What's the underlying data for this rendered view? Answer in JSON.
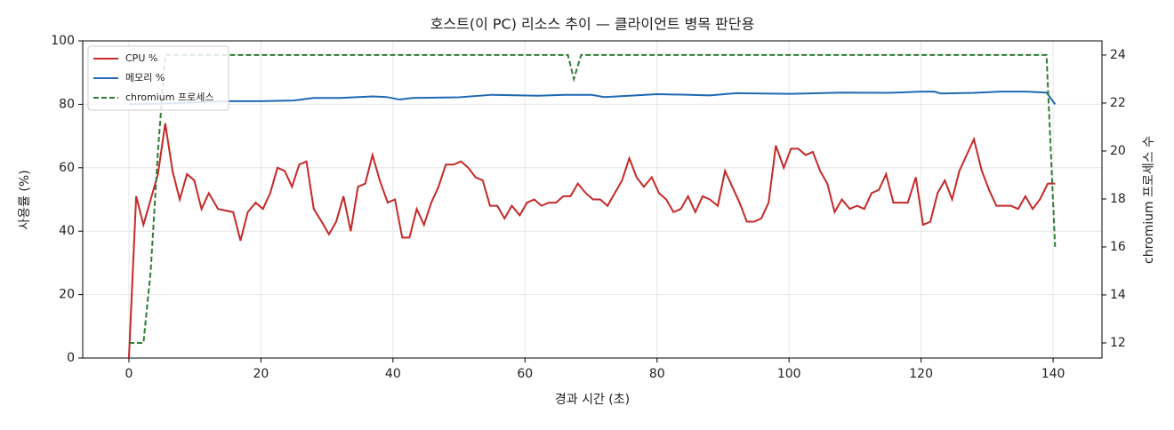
{
  "chart_data": {
    "type": "line",
    "title": "호스트(이 PC) 리소스 추이 — 클라이언트 병목 판단용",
    "xlabel": "경과 시간 (초)",
    "ylabel": "사용률 (%)",
    "y2label": "chromium 프로세스 수",
    "xlim": [
      -7,
      147.4
    ],
    "ylim": [
      0,
      100
    ],
    "y2lim": [
      11.37,
      24.59
    ],
    "xticks": [
      0,
      20,
      40,
      60,
      80,
      100,
      120,
      140
    ],
    "yticks": [
      0,
      20,
      40,
      60,
      80,
      100
    ],
    "y2ticks": [
      12,
      14,
      16,
      18,
      20,
      22,
      24
    ],
    "grid": true,
    "legend": "upper left",
    "series": [
      {
        "name": "CPU %",
        "color": "#c62828",
        "dash": false,
        "x": [
          0,
          1.1,
          2.2,
          3.3,
          4.4,
          5.5,
          6.6,
          7.7,
          8.8,
          9.9,
          11,
          12.1,
          13.5,
          15.8,
          16.9,
          18,
          19.2,
          20.3,
          21.4,
          22.5,
          23.6,
          24.7,
          25.8,
          26.9,
          28,
          29.2,
          30.3,
          31.4,
          32.5,
          33.6,
          34.7,
          35.8,
          36.9,
          38,
          39.2,
          40.3,
          41.4,
          42.5,
          43.6,
          44.7,
          45.8,
          46.9,
          48,
          49.2,
          50.3,
          51.4,
          52.5,
          53.6,
          54.7,
          55.8,
          56.9,
          58,
          59.2,
          60.3,
          61.4,
          62.5,
          63.6,
          64.7,
          65.8,
          66.9,
          68,
          69.2,
          70.3,
          71.4,
          72.5,
          73.6,
          74.7,
          75.8,
          76.9,
          78,
          79.2,
          80.3,
          81.4,
          82.5,
          83.6,
          84.7,
          85.8,
          86.9,
          88,
          89.2,
          90.3,
          91.4,
          92.5,
          93.6,
          94.7,
          95.8,
          96.9,
          98,
          99.2,
          100.3,
          101.4,
          102.5,
          103.6,
          104.7,
          105.8,
          106.9,
          108,
          109.2,
          110.3,
          111.4,
          112.5,
          113.6,
          114.7,
          115.8,
          116.9,
          118,
          119.2,
          120.3,
          121.4,
          122.5,
          123.6,
          124.7,
          125.8,
          126.9,
          128,
          129.2,
          130.3,
          131.4,
          132.5,
          133.6,
          134.7,
          135.8,
          136.9,
          138,
          139.2,
          140.3
        ],
        "values": [
          0,
          51,
          42,
          50,
          58,
          74,
          59,
          50,
          58,
          56,
          47,
          52,
          47,
          46,
          37,
          46,
          49,
          47,
          52,
          60,
          59,
          54,
          61,
          62,
          47,
          43,
          39,
          43,
          51,
          40,
          54,
          55,
          64,
          56,
          49,
          50,
          38,
          38,
          47,
          42,
          49,
          54,
          61,
          61,
          62,
          60,
          57,
          56,
          48,
          48,
          44,
          48,
          45,
          49,
          50,
          48,
          49,
          49,
          51,
          51,
          55,
          52,
          50,
          50,
          48,
          52,
          56,
          63,
          57,
          54,
          57,
          52,
          50,
          46,
          47,
          51,
          46,
          51,
          50,
          48,
          59,
          54,
          49,
          43,
          43,
          44,
          49,
          67,
          60,
          66,
          66,
          64,
          65,
          59,
          55,
          46,
          50,
          47,
          48,
          47,
          52,
          53,
          58,
          49,
          49,
          49,
          57,
          42,
          43,
          52,
          56,
          50,
          59,
          64,
          69,
          59,
          53,
          48,
          48,
          48,
          47,
          51,
          47,
          50,
          55,
          55
        ]
      },
      {
        "name": "메모리 %",
        "color": "#1f68b3",
        "dash": false,
        "x": [
          0,
          5,
          10,
          15,
          20,
          25,
          28,
          32,
          37,
          39,
          41,
          43,
          50,
          55,
          62,
          66,
          70,
          72,
          74,
          80,
          85,
          88,
          92,
          100,
          108,
          115,
          120,
          122,
          123,
          128,
          132,
          136,
          139,
          140.3
        ],
        "values": [
          80,
          80.2,
          80.6,
          81,
          81,
          81.2,
          82,
          82,
          82.5,
          82.3,
          81.5,
          82,
          82.2,
          83,
          82.7,
          83,
          83,
          82.3,
          82.5,
          83.2,
          83,
          82.8,
          83.5,
          83.3,
          83.7,
          83.6,
          84,
          84,
          83.4,
          83.6,
          84,
          84,
          83.7,
          80
        ]
      },
      {
        "name": "chromium 프로세스",
        "color": "#2e7d32",
        "dash": true,
        "axis": "y2",
        "x": [
          0,
          2.2,
          3.3,
          4.4,
          5.5,
          66.5,
          67.4,
          68.5,
          139,
          140.3
        ],
        "values": [
          12,
          12,
          15,
          20,
          24,
          24,
          23,
          24,
          24,
          16
        ]
      }
    ]
  }
}
